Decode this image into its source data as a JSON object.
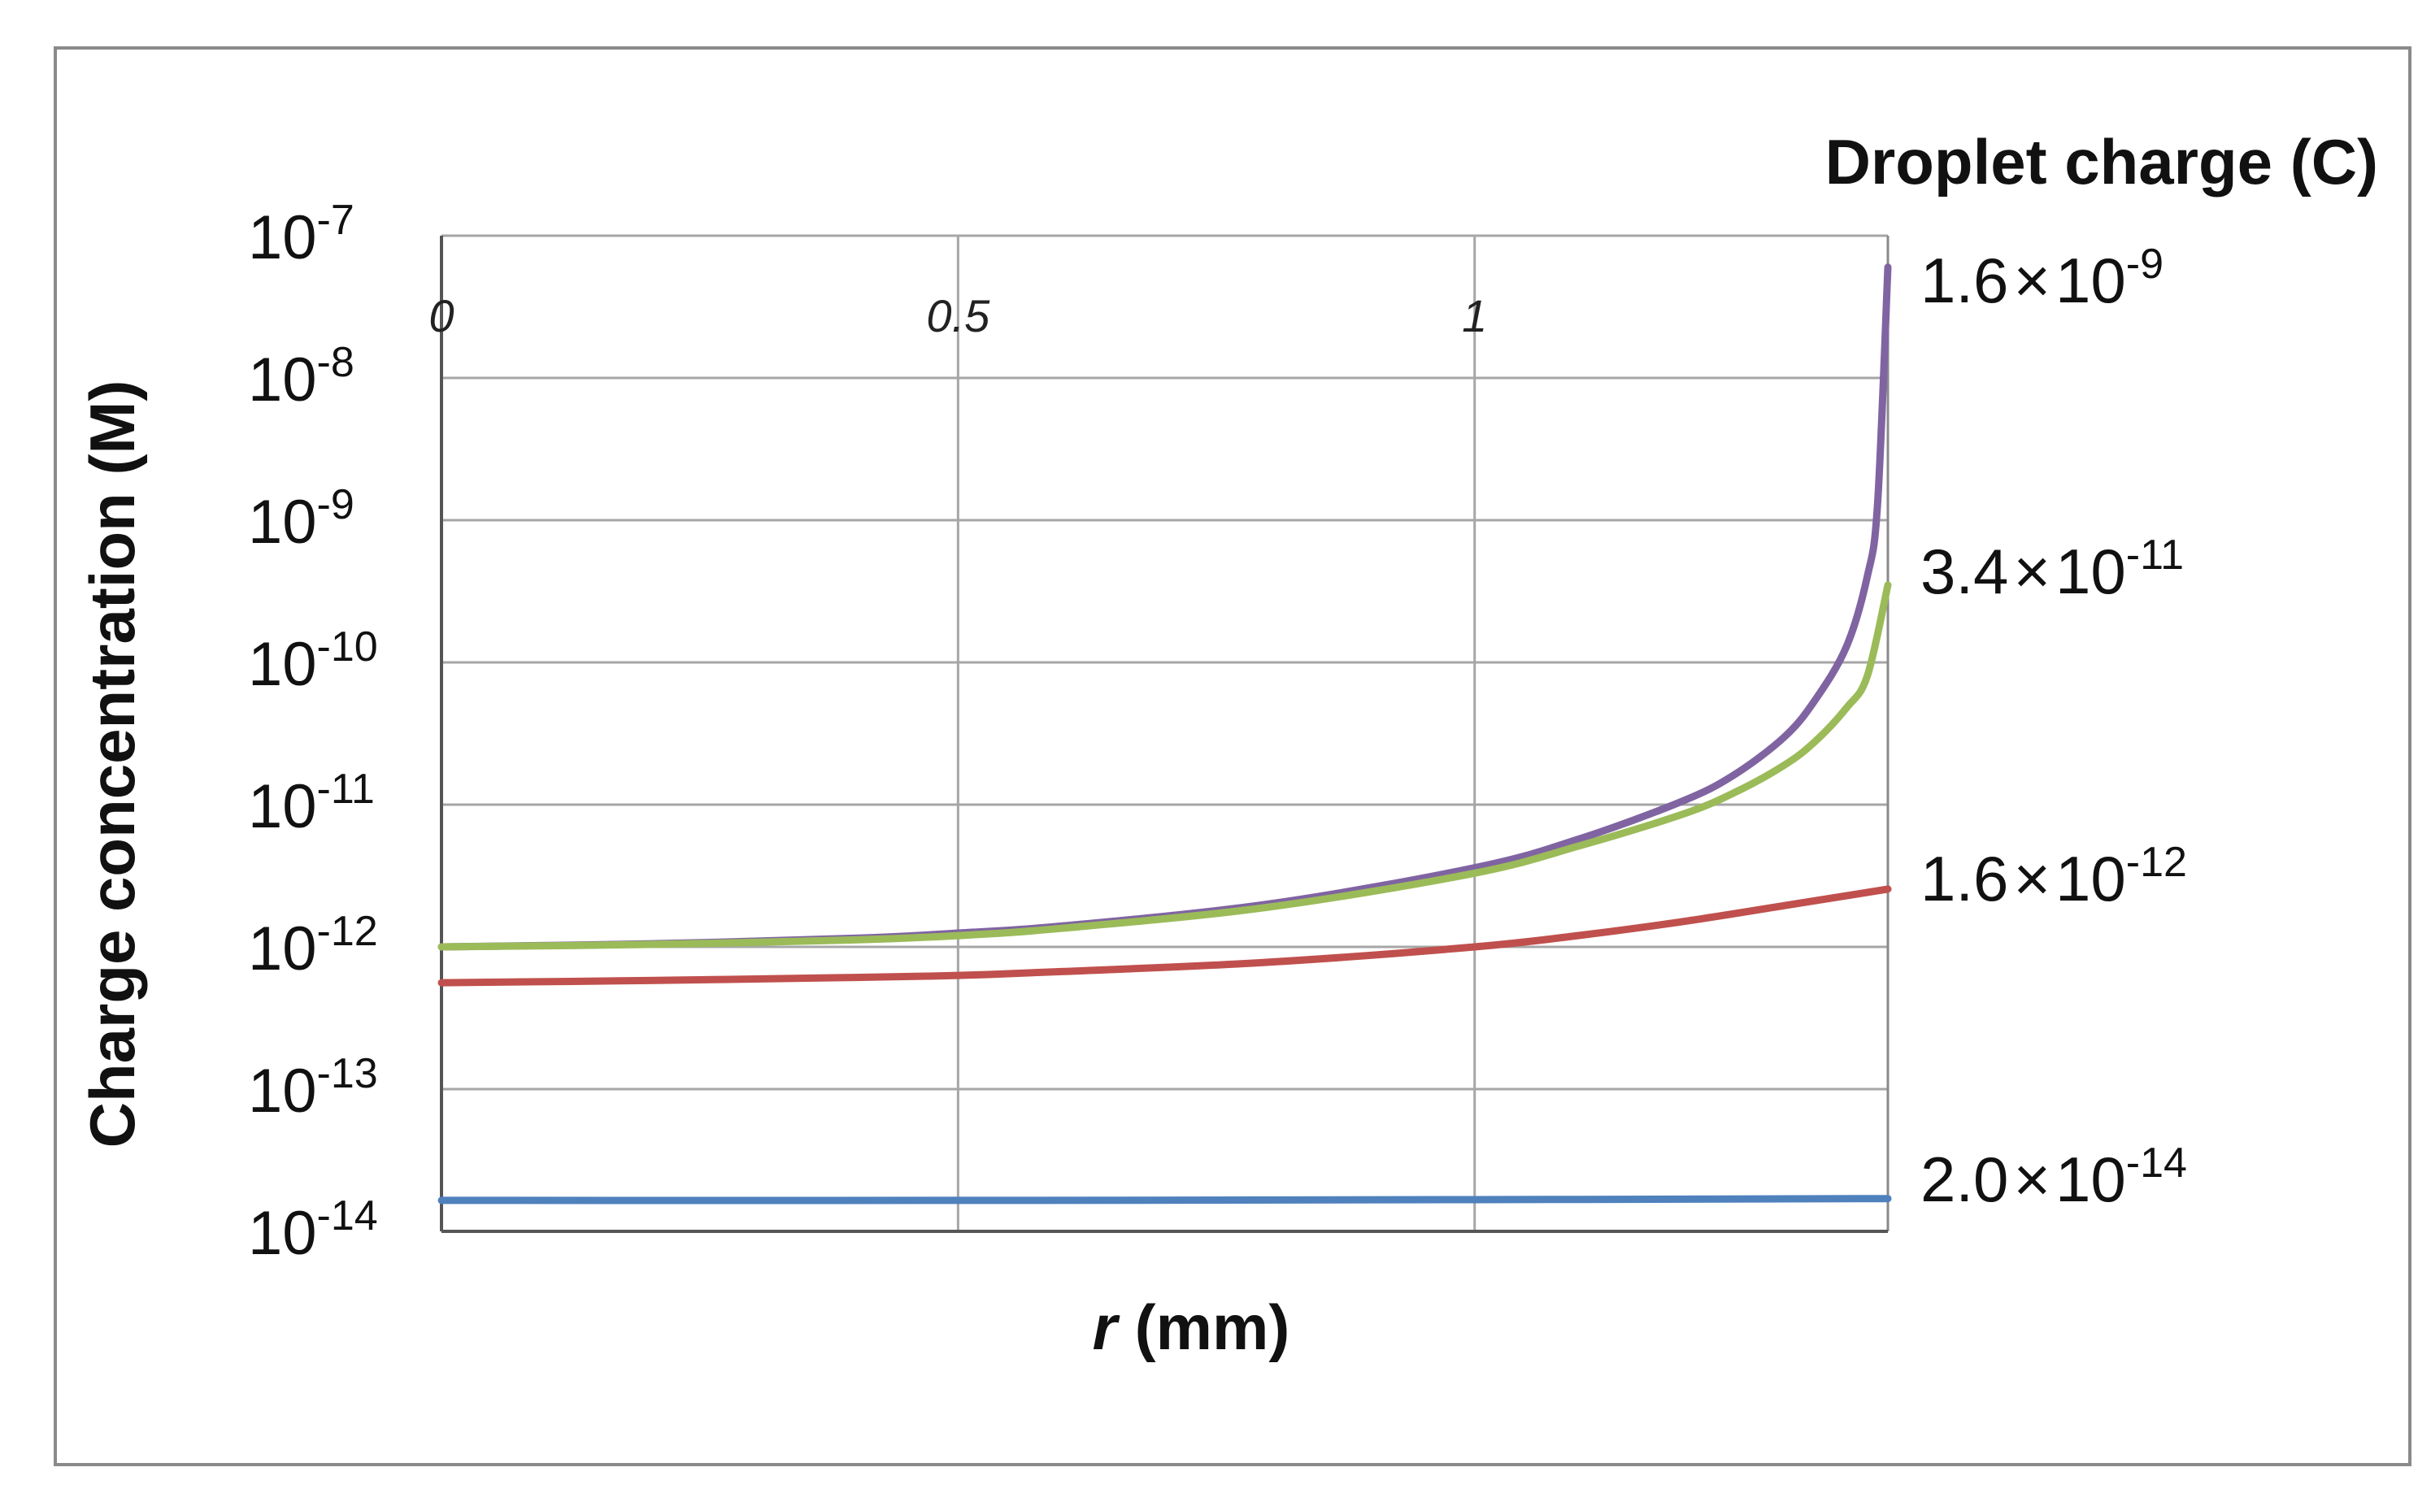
{
  "chart_data": {
    "type": "line",
    "title": "",
    "xlabel": "r (mm)",
    "xlabel_italic": "r",
    "xlabel_rest": " (mm)",
    "ylabel": "Charge concentration (M)",
    "legend_title": "Droplet charge (C)",
    "y_scale": "log",
    "xlim": [
      0,
      1.4
    ],
    "ylim": [
      1e-14,
      1e-07
    ],
    "grid": true,
    "x_ticks": [
      "0",
      "0.5",
      "1"
    ],
    "x_tick_values": [
      0,
      0.5,
      1
    ],
    "y_ticks": [
      {
        "base": "10",
        "exp": "-7",
        "value": 1e-07
      },
      {
        "base": "10",
        "exp": "-8",
        "value": 1e-08
      },
      {
        "base": "10",
        "exp": "-9",
        "value": 1e-09
      },
      {
        "base": "10",
        "exp": "-10",
        "value": 1e-10
      },
      {
        "base": "10",
        "exp": "-11",
        "value": 1e-11
      },
      {
        "base": "10",
        "exp": "-12",
        "value": 1e-12
      },
      {
        "base": "10",
        "exp": "-13",
        "value": 1e-13
      },
      {
        "base": "10",
        "exp": "-14",
        "value": 1e-14
      }
    ],
    "series": [
      {
        "name": "1.6×10-9",
        "label_mantissa": "1.6",
        "label_times": "×",
        "label_base": "10",
        "label_exp": "-9",
        "color": "#8064a2",
        "x": [
          0,
          0.2,
          0.4,
          0.5,
          0.6,
          0.8,
          1.0,
          1.1,
          1.2,
          1.25,
          1.3,
          1.33,
          1.36,
          1.38,
          1.39,
          1.4
        ],
        "y": [
          1e-12,
          1.05e-12,
          1.15e-12,
          1.25e-12,
          1.4e-12,
          2e-12,
          3.6e-12,
          5.7e-12,
          1.05e-11,
          1.6e-11,
          3e-11,
          5.5e-11,
          1.3e-10,
          4e-10,
          1.3e-09,
          6e-08
        ]
      },
      {
        "name": "3.4×10-11",
        "label_mantissa": "3.4",
        "label_times": "×",
        "label_base": "10",
        "label_exp": "-11",
        "color": "#9bbb59",
        "x": [
          0,
          0.2,
          0.4,
          0.5,
          0.6,
          0.8,
          1.0,
          1.1,
          1.2,
          1.25,
          1.3,
          1.33,
          1.36,
          1.38,
          1.4
        ],
        "y": [
          1e-12,
          1.04e-12,
          1.12e-12,
          1.2e-12,
          1.35e-12,
          1.9e-12,
          3.3e-12,
          5.1e-12,
          8.5e-12,
          1.2e-11,
          1.9e-11,
          2.8e-11,
          4.8e-11,
          8e-11,
          3.5e-10
        ]
      },
      {
        "name": "1.6×10-12",
        "label_mantissa": "1.6",
        "label_times": "×",
        "label_base": "10",
        "label_exp": "-12",
        "color": "#c0504d",
        "x": [
          0,
          0.2,
          0.4,
          0.5,
          0.6,
          0.8,
          1.0,
          1.1,
          1.2,
          1.3,
          1.4
        ],
        "y": [
          5.6e-13,
          5.8e-13,
          6.1e-13,
          6.3e-13,
          6.7e-13,
          7.8e-13,
          1e-12,
          1.2e-12,
          1.5e-12,
          1.95e-12,
          2.55e-12
        ]
      },
      {
        "name": "2.0×10-14",
        "label_mantissa": "2.0",
        "label_times": "×",
        "label_base": "10",
        "label_exp": "-14",
        "color": "#4f81bd",
        "x": [
          0,
          0.5,
          1.0,
          1.4
        ],
        "y": [
          1.65e-14,
          1.65e-14,
          1.67e-14,
          1.7e-14
        ]
      }
    ]
  }
}
